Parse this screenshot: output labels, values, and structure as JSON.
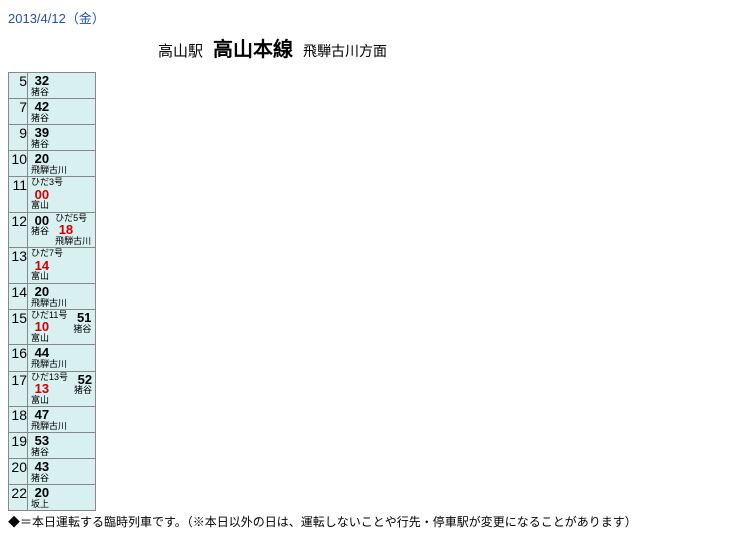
{
  "date": "2013/4/12（金）",
  "station": "高山駅",
  "line": "高山本線",
  "direction": "飛騨古川方面",
  "note": "◆＝本日運転する臨時列車です。（※本日以外の日は、運転しないことや行先・停車駅が変更になることがあります）",
  "colors": {
    "date": "#2050b0",
    "cell_bg": "#d8f0f0",
    "red": "#d00000",
    "border": "#888888"
  },
  "rows": [
    {
      "hour": "5",
      "trains": [
        {
          "label": "",
          "minute": "32",
          "red": false,
          "dest": "猪谷"
        }
      ]
    },
    {
      "hour": "7",
      "trains": [
        {
          "label": "",
          "minute": "42",
          "red": false,
          "dest": "猪谷"
        }
      ]
    },
    {
      "hour": "9",
      "trains": [
        {
          "label": "",
          "minute": "39",
          "red": false,
          "dest": "猪谷"
        }
      ]
    },
    {
      "hour": "10",
      "trains": [
        {
          "label": "",
          "minute": "20",
          "red": false,
          "dest": "飛騨古川"
        }
      ]
    },
    {
      "hour": "11",
      "trains": [
        {
          "label": "ひだ3号",
          "minute": "00",
          "red": true,
          "dest": "富山"
        }
      ]
    },
    {
      "hour": "12",
      "trains": [
        {
          "label": "",
          "minute": "00",
          "red": false,
          "dest": "猪谷"
        },
        {
          "label": "ひだ5号",
          "minute": "18",
          "red": true,
          "dest": "飛騨古川"
        }
      ]
    },
    {
      "hour": "13",
      "trains": [
        {
          "label": "ひだ7号",
          "minute": "14",
          "red": true,
          "dest": "富山"
        }
      ]
    },
    {
      "hour": "14",
      "trains": [
        {
          "label": "",
          "minute": "20",
          "red": false,
          "dest": "飛騨古川"
        }
      ]
    },
    {
      "hour": "15",
      "trains": [
        {
          "label": "ひだ11号",
          "minute": "10",
          "red": true,
          "dest": "富山"
        },
        {
          "label": "",
          "minute": "51",
          "red": false,
          "dest": "猪谷"
        }
      ]
    },
    {
      "hour": "16",
      "trains": [
        {
          "label": "",
          "minute": "44",
          "red": false,
          "dest": "飛騨古川"
        }
      ]
    },
    {
      "hour": "17",
      "trains": [
        {
          "label": "ひだ13号",
          "minute": "13",
          "red": true,
          "dest": "富山"
        },
        {
          "label": "",
          "minute": "52",
          "red": false,
          "dest": "猪谷"
        }
      ]
    },
    {
      "hour": "18",
      "trains": [
        {
          "label": "",
          "minute": "47",
          "red": false,
          "dest": "飛騨古川"
        }
      ]
    },
    {
      "hour": "19",
      "trains": [
        {
          "label": "",
          "minute": "53",
          "red": false,
          "dest": "猪谷"
        }
      ]
    },
    {
      "hour": "20",
      "trains": [
        {
          "label": "",
          "minute": "43",
          "red": false,
          "dest": "猪谷"
        }
      ]
    },
    {
      "hour": "22",
      "trains": [
        {
          "label": "",
          "minute": "20",
          "red": false,
          "dest": "坂上"
        }
      ]
    }
  ]
}
